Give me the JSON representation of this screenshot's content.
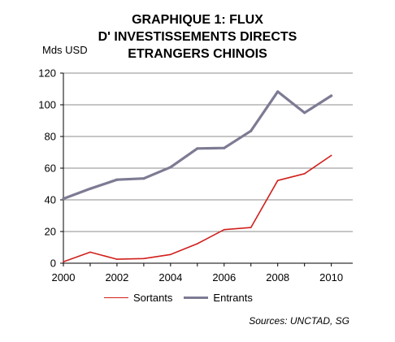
{
  "title_lines": [
    "GRAPHIQUE 1: FLUX",
    "D' INVESTISSEMENTS DIRECTS",
    "ETRANGERS CHINOIS"
  ],
  "unit_label": "Mds USD",
  "source": "Sources: UNCTAD, SG",
  "colors": {
    "sortants": "#d0201c",
    "entrants": "#7d7b93",
    "grid": "#8c8c8c"
  },
  "chart_data": {
    "type": "line",
    "title": "GRAPHIQUE 1: FLUX D' INVESTISSEMENTS DIRECTS ETRANGERS CHINOIS",
    "ylabel": "Mds USD",
    "xlabel": "",
    "x": [
      2000,
      2001,
      2002,
      2003,
      2004,
      2005,
      2006,
      2007,
      2008,
      2009,
      2010
    ],
    "xticks": [
      "2000",
      "2002",
      "2004",
      "2006",
      "2008",
      "2010"
    ],
    "yticks": [
      "0",
      "20",
      "40",
      "60",
      "80",
      "100",
      "120"
    ],
    "xlim": [
      2000,
      2010.8
    ],
    "ylim": [
      0,
      120
    ],
    "grid": "horizontal",
    "legend_position": "bottom",
    "series": [
      {
        "name": "Sortants",
        "values": [
          0.9,
          7,
          2.5,
          2.9,
          5.5,
          12.3,
          21.2,
          22.5,
          52.2,
          56.5,
          68
        ]
      },
      {
        "name": "Entrants",
        "values": [
          40.7,
          47,
          52.7,
          53.5,
          60.6,
          72.4,
          72.7,
          83.5,
          108.3,
          95,
          105.7
        ]
      }
    ]
  }
}
